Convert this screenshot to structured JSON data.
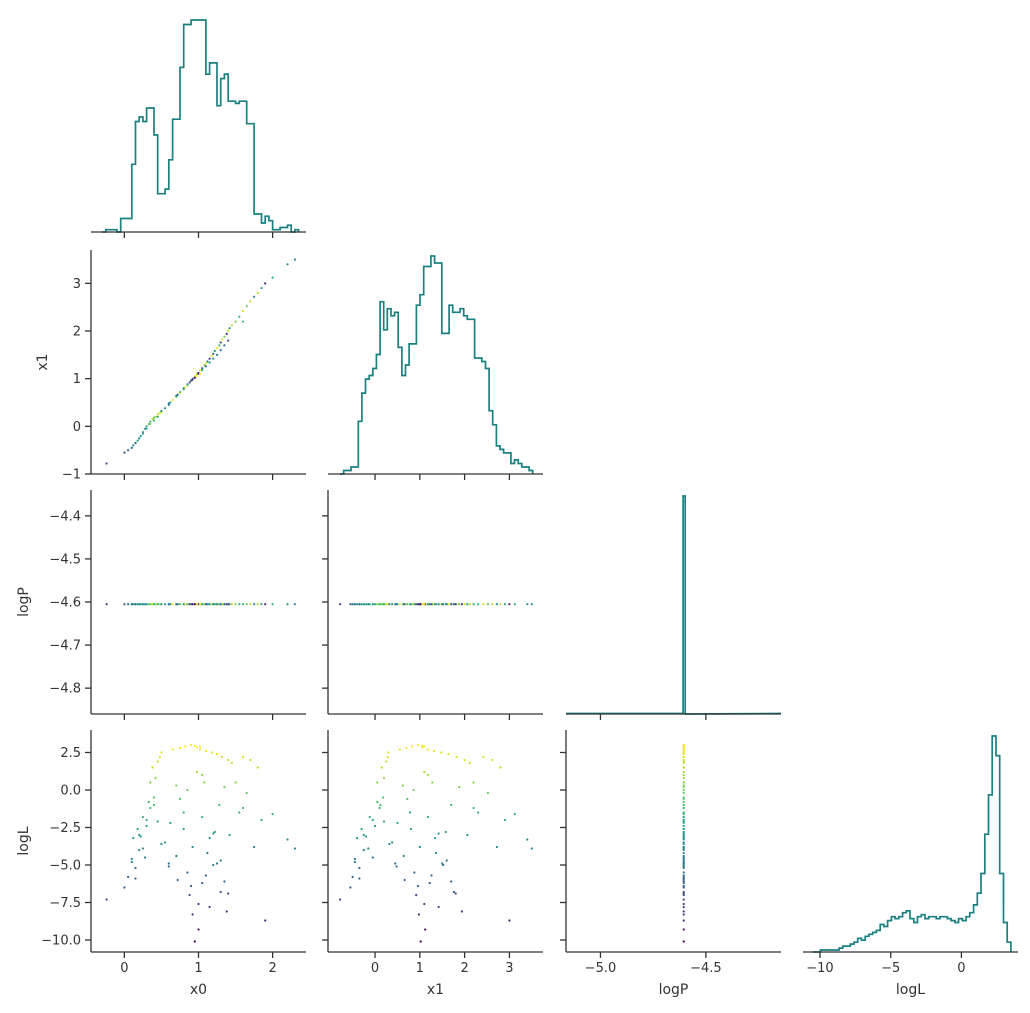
{
  "chart_data": {
    "type": "corner",
    "variables": [
      "x0",
      "x1",
      "logP",
      "logL"
    ],
    "colors": {
      "hist_line": "#1a8080",
      "spine": "#333333",
      "colormap": "viridis"
    },
    "histograms": [
      {
        "name": "x0",
        "bin_edges": [
          -0.3,
          2.35
        ],
        "nbins": 53,
        "counts": [
          0,
          1,
          1,
          1,
          0,
          6,
          6,
          6,
          30,
          49,
          51,
          49,
          55,
          55,
          43,
          17,
          17,
          19,
          32,
          50,
          50,
          73,
          92,
          92,
          94,
          94,
          94,
          94,
          70,
          75,
          75,
          56,
          68,
          70,
          58,
          58,
          57,
          58,
          58,
          48,
          48,
          8,
          8,
          4,
          7,
          5,
          1,
          1,
          2,
          2,
          3,
          0,
          1
        ],
        "xlim": [
          -0.45,
          2.45
        ],
        "xticks": [
          0,
          1,
          2
        ]
      },
      {
        "name": "x1",
        "bin_edges": [
          -0.78,
          3.52
        ],
        "nbins": 53,
        "counts": [
          0,
          1,
          1,
          2,
          2,
          15,
          23,
          27,
          28,
          30,
          34,
          49,
          41,
          47,
          45,
          46,
          36,
          28,
          31,
          37,
          37,
          48,
          51,
          59,
          59,
          62,
          60,
          60,
          40,
          40,
          48,
          46,
          46,
          47,
          45,
          44,
          44,
          33,
          33,
          32,
          30,
          18,
          14,
          8,
          7,
          6,
          6,
          3,
          4,
          3,
          2,
          2,
          1
        ],
        "xlim": [
          -1.05,
          3.75
        ],
        "xticks": [
          0,
          1,
          2,
          3
        ]
      },
      {
        "name": "logP",
        "bin_edges": [
          -4.608,
          -4.598
        ],
        "nbins": 1,
        "counts": [
          1
        ],
        "xlim": [
          -5.1635,
          -4.1435
        ],
        "xticks": [
          -5.0,
          -4.5
        ],
        "xtick_labels": [
          "−5.0",
          "−4.5"
        ]
      },
      {
        "name": "logL",
        "bin_edges": [
          -10.5,
          3.5
        ],
        "nbins": 53,
        "counts": [
          0,
          0,
          1,
          1,
          1,
          1,
          1,
          2,
          3,
          3,
          4,
          5,
          7,
          6,
          8,
          9,
          10,
          11,
          14,
          13,
          16,
          18,
          17,
          18,
          20,
          21,
          17,
          15,
          18,
          19,
          17,
          18,
          18,
          17,
          18,
          18,
          17,
          16,
          15,
          17,
          16,
          18,
          20,
          24,
          30,
          40,
          60,
          80,
          110,
          100,
          40,
          15,
          5
        ],
        "xlim": [
          -11.2,
          4.0
        ],
        "xticks": [
          -10,
          -5,
          0
        ],
        "xtick_labels": [
          "−10",
          "−5",
          "0"
        ]
      }
    ],
    "scatter_axes": {
      "x1": {
        "ylim": [
          -1.0,
          3.7
        ],
        "yticks": [
          -1,
          0,
          1,
          2,
          3
        ],
        "ytick_labels": [
          "−1",
          "0",
          "1",
          "2",
          "3"
        ]
      },
      "logP": {
        "ylim": [
          -4.86,
          -4.34
        ],
        "yticks": [
          -4.8,
          -4.7,
          -4.6,
          -4.5,
          -4.4
        ],
        "ytick_labels": [
          "−4.8",
          "−4.7",
          "−4.6",
          "−4.5",
          "−4.4"
        ]
      },
      "logL": {
        "ylim": [
          -10.8,
          4.0
        ],
        "yticks": [
          -10.0,
          -7.5,
          -5.0,
          -2.5,
          0.0,
          2.5
        ],
        "ytick_labels": [
          "−10.0",
          "−7.5",
          "−5.0",
          "−2.5",
          "0.0",
          "2.5"
        ]
      }
    },
    "samples": {
      "note_color_by": "logL",
      "logP_value": -4.6052,
      "x0": [
        -0.24,
        0.0,
        0.05,
        0.1,
        0.12,
        0.15,
        0.18,
        0.2,
        0.22,
        0.25,
        0.28,
        0.3,
        0.33,
        0.35,
        0.38,
        0.4,
        0.42,
        0.45,
        0.48,
        0.5,
        0.55,
        0.6,
        0.62,
        0.65,
        0.7,
        0.72,
        0.75,
        0.8,
        0.82,
        0.85,
        0.88,
        0.9,
        0.92,
        0.95,
        0.98,
        1.0,
        1.02,
        1.05,
        1.08,
        1.1,
        1.12,
        1.15,
        1.18,
        1.2,
        1.22,
        1.25,
        1.28,
        1.3,
        1.32,
        1.35,
        1.38,
        1.4,
        1.42,
        1.45,
        1.5,
        1.55,
        1.6,
        1.65,
        1.7,
        1.75,
        1.8,
        1.85,
        1.9,
        2.0,
        2.2,
        2.3,
        0.1,
        0.15,
        0.2,
        0.3,
        0.35,
        0.4,
        0.5,
        0.6,
        0.7,
        0.8,
        0.9,
        1.0,
        1.1,
        1.2,
        1.3,
        1.4,
        0.95,
        1.05,
        1.15,
        0.85,
        1.25,
        0.75,
        0.45,
        0.25,
        1.35,
        1.6,
        1.05,
        0.92,
        0.98,
        1.02
      ],
      "x1": [
        -0.78,
        -0.55,
        -0.5,
        -0.45,
        -0.4,
        -0.35,
        -0.3,
        -0.25,
        -0.2,
        -0.12,
        -0.05,
        0.0,
        0.05,
        0.1,
        0.15,
        0.18,
        0.2,
        0.25,
        0.28,
        0.3,
        0.38,
        0.45,
        0.5,
        0.55,
        0.62,
        0.66,
        0.7,
        0.78,
        0.82,
        0.88,
        0.92,
        0.96,
        1.0,
        1.05,
        1.1,
        1.12,
        1.18,
        1.22,
        1.28,
        1.32,
        1.36,
        1.42,
        1.48,
        1.52,
        1.58,
        1.64,
        1.7,
        1.76,
        1.82,
        1.88,
        1.94,
        2.0,
        2.06,
        2.12,
        2.2,
        2.3,
        2.42,
        2.52,
        2.62,
        2.72,
        2.8,
        2.9,
        3.0,
        3.12,
        3.4,
        3.5,
        -0.45,
        -0.35,
        -0.25,
        -0.05,
        0.05,
        0.12,
        0.32,
        0.48,
        0.64,
        0.8,
        0.96,
        1.1,
        1.26,
        1.42,
        1.6,
        1.8,
        1.02,
        1.18,
        1.34,
        0.86,
        1.5,
        0.72,
        0.2,
        -0.15,
        1.7,
        2.2,
        1.18,
        0.98,
        1.06,
        1.1
      ],
      "logL": [
        -7.3,
        -6.5,
        -5.8,
        -4.8,
        -3.2,
        -5.2,
        -2.6,
        -4.0,
        -3.1,
        -1.8,
        -4.5,
        -2.4,
        -0.8,
        -1.2,
        1.5,
        -0.5,
        0.8,
        1.9,
        2.2,
        2.5,
        -3.5,
        -4.9,
        -2.2,
        2.7,
        0.3,
        -6.0,
        2.8,
        -1.5,
        2.9,
        -5.5,
        -7.0,
        3.0,
        -3.8,
        2.95,
        1.2,
        -9.3,
        2.7,
        -6.2,
        0.5,
        2.6,
        -4.2,
        -7.8,
        2.5,
        -5.0,
        -2.8,
        2.4,
        -1.0,
        -6.8,
        2.2,
        0.2,
        -8.1,
        2.0,
        -3.0,
        1.8,
        0.5,
        -1.5,
        2.2,
        -0.2,
        2.0,
        -3.8,
        1.5,
        -2.0,
        -8.7,
        -1.6,
        -3.3,
        -3.9,
        -4.6,
        -5.9,
        -3.0,
        -2.0,
        0.5,
        -1.0,
        -3.6,
        -5.1,
        -4.4,
        -2.6,
        -6.4,
        -7.6,
        -5.7,
        -2.9,
        -4.7,
        -6.9,
        -10.1,
        1.0,
        -3.2,
        0.0,
        -4.9,
        -0.6,
        -2.1,
        -3.9,
        -6.1,
        -1.2,
        -1.8,
        -8.3,
        2.85,
        2.9
      ]
    }
  }
}
